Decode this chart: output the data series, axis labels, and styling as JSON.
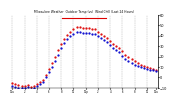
{
  "title": "Milwaukee Weather  Outdoor Temp (vs)  Wind Chill (Last 24 Hours)",
  "bg_color": "#ffffff",
  "grid_color": "#aaaaaa",
  "red_line_color": "#dd0000",
  "blue_line_color": "#0000cc",
  "ylim": [
    -10,
    60
  ],
  "yticks": [
    -10,
    0,
    10,
    20,
    30,
    40,
    50,
    60
  ],
  "num_points": 48,
  "red_data": [
    -5,
    -6,
    -7,
    -8,
    -8,
    -7,
    -9,
    -8,
    -6,
    -4,
    -2,
    2,
    8,
    14,
    20,
    26,
    32,
    37,
    41,
    44,
    46,
    48,
    48,
    47,
    47,
    47,
    46,
    46,
    44,
    42,
    40,
    38,
    35,
    32,
    30,
    28,
    25,
    22,
    20,
    18,
    16,
    14,
    12,
    11,
    10,
    9,
    8,
    7
  ],
  "blue_data": [
    -8,
    -9,
    -10,
    -10,
    -10,
    -9,
    -11,
    -10,
    -8,
    -6,
    -4,
    0,
    5,
    10,
    16,
    22,
    28,
    33,
    37,
    40,
    42,
    44,
    44,
    43,
    43,
    43,
    42,
    42,
    40,
    38,
    36,
    34,
    31,
    28,
    26,
    24,
    21,
    18,
    16,
    14,
    12,
    11,
    10,
    9,
    8,
    7,
    7,
    6
  ],
  "xtick_positions": [
    0,
    4,
    8,
    12,
    16,
    20,
    24,
    28,
    32,
    36,
    40,
    44,
    47
  ],
  "xtick_labels": [
    "12a",
    "2",
    "4",
    "6",
    "8",
    "10",
    "12p",
    "2",
    "4",
    "6",
    "8",
    "10",
    "12a"
  ]
}
